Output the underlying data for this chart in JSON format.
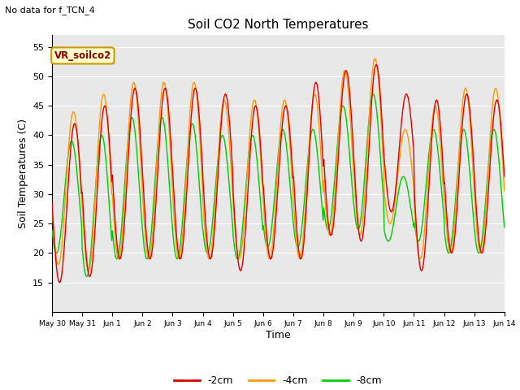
{
  "title": "Soil CO2 North Temperatures",
  "no_data_text": "No data for f_TCN_4",
  "annotation_box": "VR_soilco2",
  "ylabel": "Soil Temperatures (C)",
  "xlabel": "Time",
  "ylim": [
    10,
    57
  ],
  "yticks": [
    15,
    20,
    25,
    30,
    35,
    40,
    45,
    50,
    55
  ],
  "bg_color": "#e8e8e8",
  "legend": [
    {
      "label": "-2cm",
      "color": "#dd0000"
    },
    {
      "label": "-4cm",
      "color": "#ff9900"
    },
    {
      "label": "-8cm",
      "color": "#00cc00"
    }
  ],
  "x_tick_labels": [
    "May 30",
    "May 31",
    "Jun 1",
    "Jun 2",
    "Jun 3",
    "Jun 4",
    "Jun 5",
    "Jun 6",
    "Jun 7",
    "Jun 8",
    "Jun 9",
    "Jun 10",
    "Jun 11",
    "Jun 12",
    "Jun 13",
    "Jun 14"
  ],
  "num_days": 15,
  "points_per_day": 48,
  "daily_min_2cm": [
    15,
    16,
    19,
    19,
    19,
    19,
    17,
    19,
    19,
    23,
    22,
    27,
    17,
    20,
    20
  ],
  "daily_max_2cm": [
    42,
    45,
    48,
    48,
    48,
    47,
    45,
    45,
    49,
    51,
    52,
    47,
    46,
    47,
    46
  ],
  "daily_min_4cm": [
    18,
    17,
    19,
    19,
    19,
    19,
    19,
    19,
    19,
    23,
    23,
    25,
    19,
    20,
    20
  ],
  "daily_max_4cm": [
    44,
    47,
    49,
    49,
    49,
    46,
    46,
    46,
    47,
    51,
    53,
    41,
    45,
    48,
    48
  ],
  "daily_min_8cm": [
    20,
    16,
    19,
    19,
    19,
    20,
    19,
    21,
    21,
    24,
    24,
    22,
    22,
    20,
    20
  ],
  "daily_max_8cm": [
    39,
    40,
    43,
    43,
    42,
    40,
    40,
    41,
    41,
    45,
    47,
    33,
    41,
    41,
    41
  ]
}
